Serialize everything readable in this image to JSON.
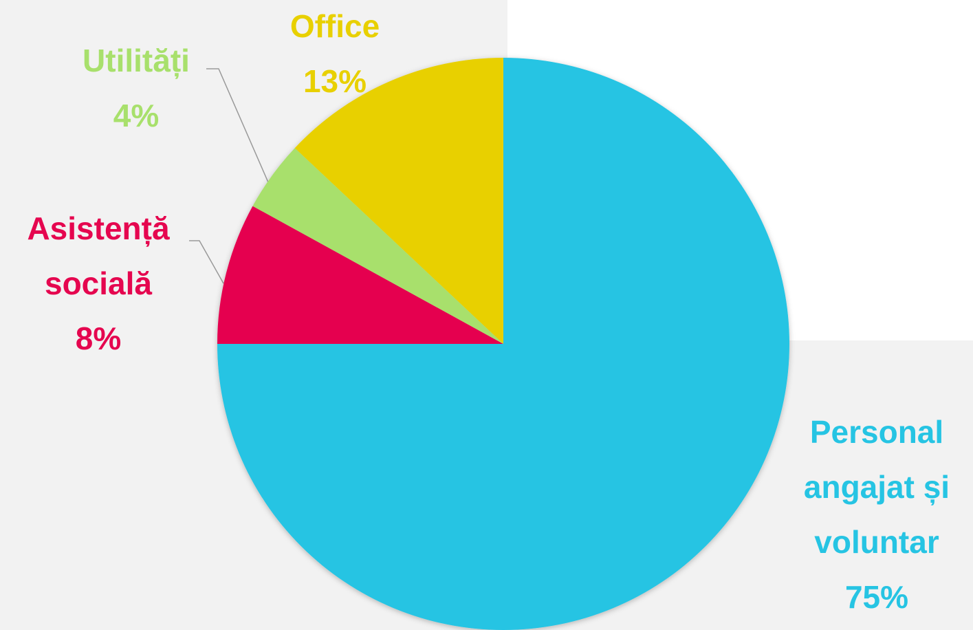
{
  "chart_data": {
    "type": "pie",
    "categories": [
      "Personal angajat și voluntar",
      "Asistență socială",
      "Utilități",
      "Office"
    ],
    "values": [
      75,
      8,
      4,
      13
    ],
    "value_labels": [
      "75%",
      "8%",
      "4%",
      "13%"
    ],
    "colors": [
      "#26c4e3",
      "#e5064f",
      "#a8e06c",
      "#e8d000"
    ]
  }
}
